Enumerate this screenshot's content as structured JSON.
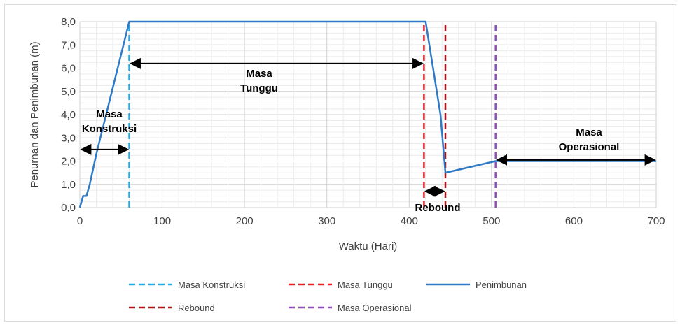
{
  "chart_data": {
    "type": "line",
    "xlabel": "Waktu (Hari)",
    "ylabel": "Penurnan dan Penimbunan (m)",
    "xlim": [
      0,
      700
    ],
    "ylim": [
      0,
      8
    ],
    "x_ticks": [
      "0",
      "100",
      "200",
      "300",
      "400",
      "500",
      "600",
      "700"
    ],
    "y_ticks": [
      "0,0",
      "1,0",
      "2,0",
      "3,0",
      "4,0",
      "5,0",
      "6,0",
      "7,0",
      "8,0"
    ],
    "grid": true,
    "legend_position": "bottom",
    "series": [
      {
        "name": "Penimbunan",
        "color": "#2f7ac7",
        "style": "solid",
        "x": [
          0,
          4,
          8,
          12,
          20,
          60,
          420,
          438,
          444,
          505,
          700
        ],
        "y": [
          0.0,
          0.5,
          0.5,
          1.0,
          2.3,
          8.0,
          8.0,
          4.0,
          1.5,
          2.0,
          2.0
        ]
      },
      {
        "name": "Masa Konstruksi",
        "color": "#29a9e0",
        "style": "dashed",
        "x": [
          60,
          60
        ],
        "y": [
          0,
          8
        ]
      },
      {
        "name": "Masa Tunggu",
        "color": "#e8202a",
        "style": "dashed",
        "x": [
          418,
          418
        ],
        "y": [
          0,
          8
        ]
      },
      {
        "name": "Rebound",
        "color": "#b01219",
        "style": "dashed",
        "x": [
          444,
          444
        ],
        "y": [
          0,
          8
        ]
      },
      {
        "name": "Masa Operasional",
        "color": "#8d4fb7",
        "style": "dashed",
        "x": [
          505,
          505
        ],
        "y": [
          0,
          8
        ]
      }
    ],
    "annotations": [
      {
        "lines": [
          "Masa",
          "Konstruksi"
        ],
        "arrow_from": [
          0,
          2.5
        ],
        "arrow_to": [
          60,
          2.5
        ]
      },
      {
        "lines": [
          "Masa",
          "Tunggu"
        ],
        "arrow_from": [
          60,
          6.2
        ],
        "arrow_to": [
          418,
          6.2
        ]
      },
      {
        "lines": [
          "Rebound"
        ],
        "arrow_from": [
          418,
          0.7
        ],
        "arrow_to": [
          444,
          0.7
        ]
      },
      {
        "lines": [
          "Masa",
          "Operasional"
        ],
        "arrow_from": [
          505,
          2.05
        ],
        "arrow_to": [
          700,
          2.05
        ]
      }
    ],
    "legend": [
      {
        "label": "Masa Konstruksi",
        "color": "#29a9e0",
        "style": "dashed"
      },
      {
        "label": "Masa Tunggu",
        "color": "#e8202a",
        "style": "dashed"
      },
      {
        "label": "Penimbunan",
        "color": "#2f7ac7",
        "style": "solid"
      },
      {
        "label": "Rebound",
        "color": "#b01219",
        "style": "dashed"
      },
      {
        "label": "Masa Operasional",
        "color": "#8d4fb7",
        "style": "dashed"
      }
    ]
  }
}
